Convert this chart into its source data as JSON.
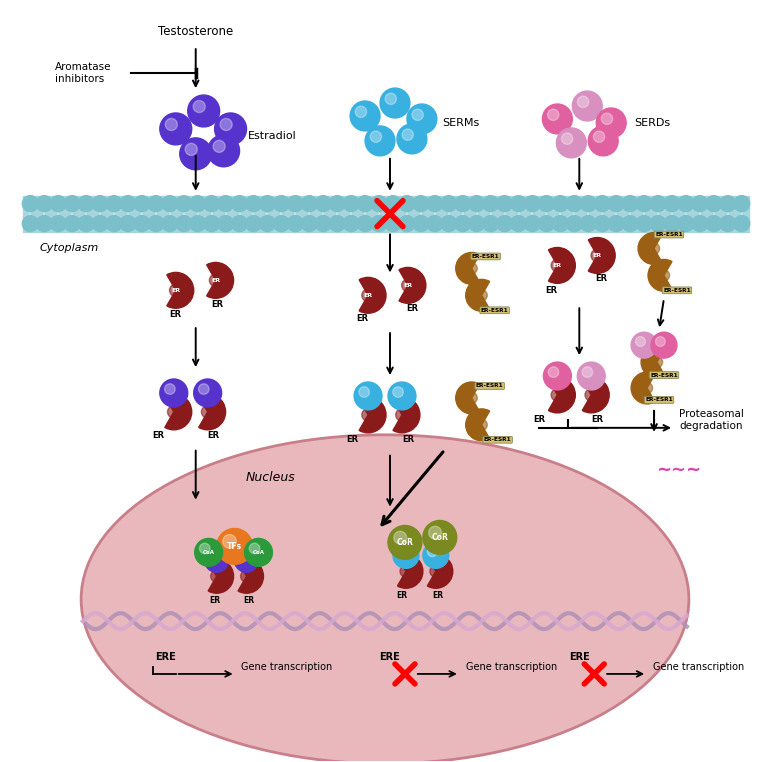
{
  "bg_color": "#ffffff",
  "membrane_color": "#7bbfca",
  "membrane_fill": "#a8d5dc",
  "cytoplasm_label": "Cytoplasm",
  "nucleus_label": "Nucleus",
  "nucleus_color": "#e8b8bc",
  "nucleus_border": "#c97f8a",
  "er_color": "#8b1a1a",
  "er_mut_color": "#9b6014",
  "estradiol_color": "#5533cc",
  "serm_color": "#38b0e0",
  "serd_color_1": "#e060a0",
  "serd_color_2": "#d890c0",
  "tfs_color": "#e87820",
  "coa_color": "#2a9a3a",
  "cor_color": "#7a8a20",
  "proteasome_color": "#e040b0",
  "testosterone_label": "Testosterone",
  "aromatase_label": "Aromatase\ninhibitors",
  "estradiol_label": "Estradiol",
  "serms_label": "SERMs",
  "serds_label": "SERDs",
  "ere_label": "ERE",
  "gene_transcription_label": "Gene transcription",
  "proteasomal_label": "Proteasomal\ndegradation",
  "tfs_label": "TFs",
  "coa_label": "CoA",
  "cor_label": "CoR",
  "dna_color1": "#b090b8",
  "dna_color2": "#d8a8d0"
}
